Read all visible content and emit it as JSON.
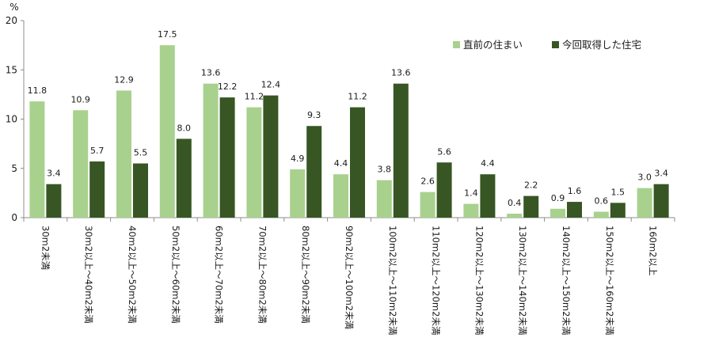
{
  "chart_data": {
    "type": "bar",
    "unit": "%",
    "ylim": [
      0,
      20
    ],
    "yticks": [
      0,
      5,
      10,
      15,
      20
    ],
    "grid": false,
    "legend_position": "top-right",
    "categories": [
      "30m2未満",
      "30m2以上～40m2未満",
      "40m2以上～50m2未満",
      "50m2以上～60m2未満",
      "60m2以上～70m2未満",
      "70m2以上～80m2未満",
      "80m2以上～90m2未満",
      "90m2以上～100m2未満",
      "100m2以上～110m2未満",
      "110m2以上～120m2未満",
      "120m2以上～130m2未満",
      "130m2以上～140m2未満",
      "140m2以上～150m2未満",
      "150m2以上～160m2未満",
      "160m2以上"
    ],
    "series": [
      {
        "name": "直前の住まい",
        "color": "#a9d18e",
        "values": [
          11.8,
          10.9,
          12.9,
          17.5,
          13.6,
          11.2,
          4.9,
          4.4,
          3.8,
          2.6,
          1.4,
          0.4,
          0.9,
          0.6,
          3.0
        ],
        "labels": [
          "11.8",
          "10.9",
          "12.9",
          "17.5",
          "13.6",
          "11.2",
          "4.9",
          "4.4",
          "3.8",
          "2.6",
          "1.4",
          "0.4",
          "0.9",
          "0.6",
          "3.0"
        ]
      },
      {
        "name": "今回取得した住宅",
        "color": "#375623",
        "values": [
          3.4,
          5.7,
          5.5,
          8.0,
          12.2,
          12.4,
          9.3,
          11.2,
          13.6,
          5.6,
          4.4,
          2.2,
          1.6,
          1.5,
          3.4
        ],
        "labels": [
          "3.4",
          "5.7",
          "5.5",
          "8.0",
          "12.2",
          "12.4",
          "9.3",
          "11.2",
          "13.6",
          "5.6",
          "4.4",
          "2.2",
          "1.6",
          "1.5",
          "3.4"
        ]
      }
    ]
  }
}
